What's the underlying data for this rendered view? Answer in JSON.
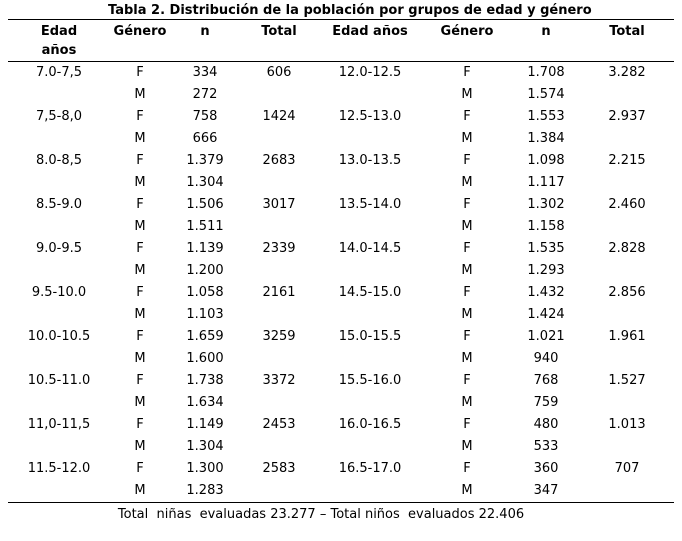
{
  "title": "Tabla 2. Distribución de la población por grupos de edad y género",
  "table": {
    "headers": [
      "Edad\naños",
      "Género",
      "n",
      "Total",
      "Edad años",
      "Género",
      "n",
      "Total"
    ],
    "rows": [
      [
        "7.0-7,5",
        "F",
        "334",
        "606",
        "12.0-12.5",
        "F",
        "1.708",
        "3.282"
      ],
      [
        "",
        "M",
        "272",
        "",
        "",
        "M",
        "1.574",
        ""
      ],
      [
        "7,5-8,0",
        "F",
        "758",
        "1424",
        "12.5-13.0",
        "F",
        "1.553",
        "2.937"
      ],
      [
        "",
        "M",
        "666",
        "",
        "",
        "M",
        "1.384",
        ""
      ],
      [
        "8.0-8,5",
        "F",
        "1.379",
        "2683",
        "13.0-13.5",
        "F",
        "1.098",
        "2.215"
      ],
      [
        "",
        "M",
        "1.304",
        "",
        "",
        "M",
        "1.117",
        ""
      ],
      [
        "8.5-9.0",
        "F",
        "1.506",
        "3017",
        "13.5-14.0",
        "F",
        "1.302",
        "2.460"
      ],
      [
        "",
        "M",
        "1.511",
        "",
        "",
        "M",
        "1.158",
        ""
      ],
      [
        "9.0-9.5",
        "F",
        "1.139",
        "2339",
        "14.0-14.5",
        "F",
        "1.535",
        "2.828"
      ],
      [
        "",
        "M",
        "1.200",
        "",
        "",
        "M",
        "1.293",
        ""
      ],
      [
        "9.5-10.0",
        "F",
        "1.058",
        "2161",
        "14.5-15.0",
        "F",
        "1.432",
        "2.856"
      ],
      [
        "",
        "M",
        "1.103",
        "",
        "",
        "M",
        "1.424",
        ""
      ],
      [
        "10.0-10.5",
        "F",
        "1.659",
        "3259",
        "15.0-15.5",
        "F",
        "1.021",
        "1.961"
      ],
      [
        "",
        "M",
        "1.600",
        "",
        "",
        "M",
        "940",
        ""
      ],
      [
        "10.5-11.0",
        "F",
        "1.738",
        "3372",
        "15.5-16.0",
        "F",
        "768",
        "1.527"
      ],
      [
        "",
        "M",
        "1.634",
        "",
        "",
        "M",
        "759",
        ""
      ],
      [
        "11,0-11,5",
        "F",
        "1.149",
        "2453",
        "16.0-16.5",
        "F",
        "480",
        "1.013"
      ],
      [
        "",
        "M",
        "1.304",
        "",
        "",
        "M",
        "533",
        ""
      ],
      [
        "11.5-12.0",
        "F",
        "1.300",
        "2583",
        "16.5-17.0",
        "F",
        "360",
        "707"
      ],
      [
        "",
        "M",
        "1.283",
        "",
        "",
        "M",
        "347",
        ""
      ]
    ]
  },
  "footer": "Total  niñas  evaluadas 23.277 – Total niños  evaluados 22.406"
}
